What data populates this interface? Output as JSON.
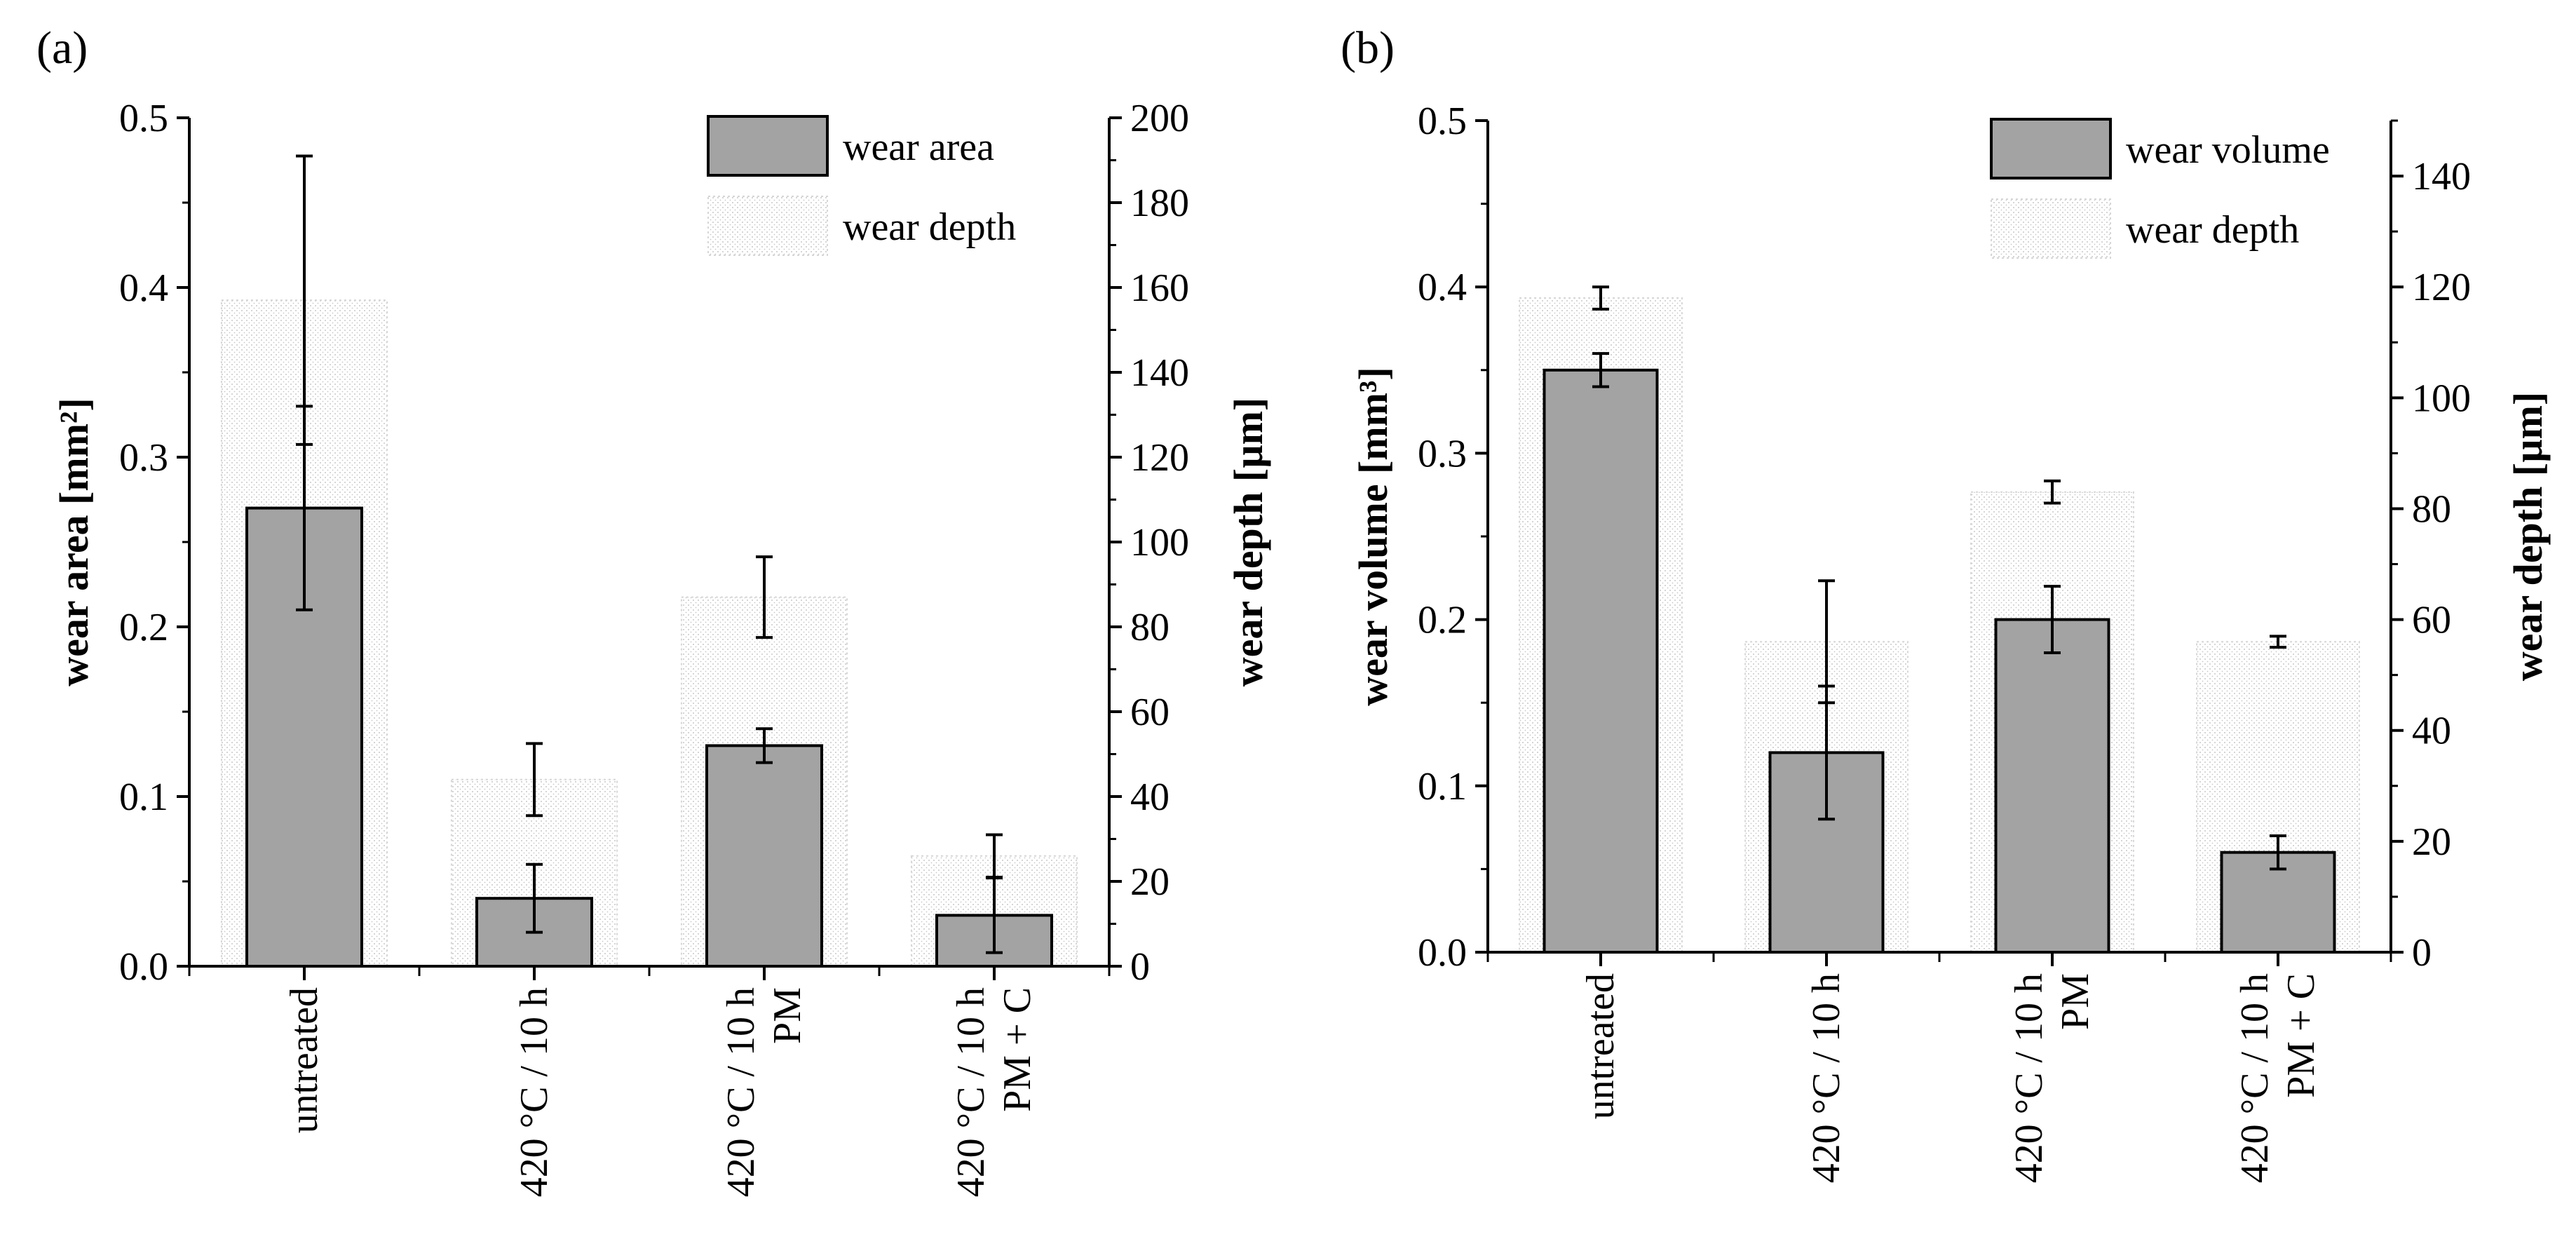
{
  "chart_data": [
    {
      "type": "bar",
      "panel": "(a)",
      "categories": [
        {
          "lines": [
            "untreated"
          ]
        },
        {
          "lines": [
            "420 °C / 10 h"
          ]
        },
        {
          "lines": [
            "420 °C / 10 h",
            "PM"
          ]
        },
        {
          "lines": [
            "420 °C / 10 h",
            "PM + C"
          ]
        }
      ],
      "series": [
        {
          "name": "wear area",
          "axis": "left",
          "style": "solid",
          "values": [
            0.27,
            0.04,
            0.13,
            0.03
          ],
          "errors": [
            0.06,
            0.02,
            0.01,
            0.022
          ]
        },
        {
          "name": "wear depth",
          "axis": "right",
          "style": "dotted",
          "values": [
            157,
            44,
            87,
            26
          ],
          "errors": [
            34,
            8.5,
            9.5,
            5
          ]
        }
      ],
      "ylabel": "wear area [mm²]",
      "y2label": "wear depth [µm]",
      "ylim": [
        0,
        0.5
      ],
      "y2lim": [
        0,
        200
      ],
      "yticks": [
        "0.0",
        "0.1",
        "0.2",
        "0.3",
        "0.4",
        "0.5"
      ],
      "y2ticks": [
        "0",
        "20",
        "40",
        "60",
        "80",
        "100",
        "120",
        "140",
        "160",
        "180",
        "200"
      ],
      "legend_position": "top-right",
      "grid": false
    },
    {
      "type": "bar",
      "panel": "(b)",
      "categories": [
        {
          "lines": [
            "untreated"
          ]
        },
        {
          "lines": [
            "420 °C / 10 h"
          ]
        },
        {
          "lines": [
            "420 °C / 10 h",
            "PM"
          ]
        },
        {
          "lines": [
            "420 °C / 10 h",
            "PM + C"
          ]
        }
      ],
      "series": [
        {
          "name": "wear volume",
          "axis": "left",
          "style": "solid",
          "values": [
            0.35,
            0.12,
            0.2,
            0.06
          ],
          "errors": [
            0.01,
            0.04,
            0.02,
            0.01
          ]
        },
        {
          "name": "wear depth",
          "axis": "right",
          "style": "dotted",
          "values": [
            118,
            56,
            83,
            56
          ],
          "errors": [
            2,
            11,
            2,
            1
          ]
        }
      ],
      "ylabel": "wear volume [mm³]",
      "y2label": "wear depth [µm]",
      "ylim": [
        0,
        0.5
      ],
      "y2lim": [
        0,
        150
      ],
      "yticks": [
        "0.0",
        "0.1",
        "0.2",
        "0.3",
        "0.4",
        "0.5"
      ],
      "y2ticks": [
        "0",
        "20",
        "40",
        "60",
        "80",
        "100",
        "120",
        "140"
      ],
      "legend_position": "top-right",
      "grid": false
    }
  ]
}
